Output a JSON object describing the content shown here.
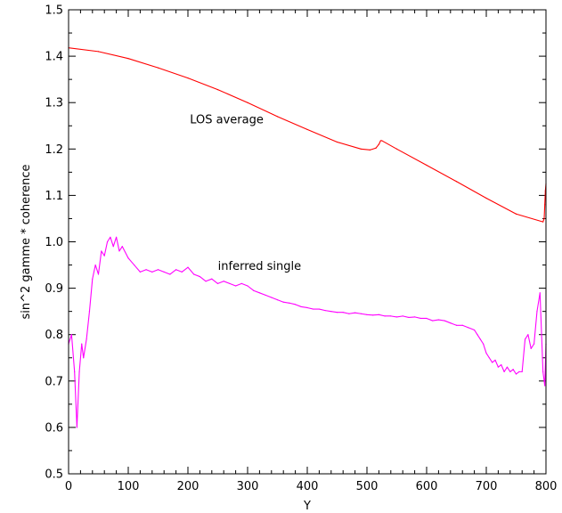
{
  "chart_data": {
    "type": "line",
    "title": "",
    "xlabel": "Y",
    "ylabel": "sin^2 gamme * coherence",
    "xlim": [
      0,
      800
    ],
    "ylim": [
      0.5,
      1.5
    ],
    "x_ticks": [
      0,
      100,
      200,
      300,
      400,
      500,
      600,
      700,
      800
    ],
    "x_tick_labels": [
      "0",
      "100",
      "200",
      "300",
      "400",
      "500",
      "600",
      "700",
      "800"
    ],
    "y_ticks": [
      0.5,
      0.6,
      0.7,
      0.8,
      0.9,
      1.0,
      1.1,
      1.2,
      1.3,
      1.4,
      1.5
    ],
    "y_tick_labels": [
      "0.5",
      "0.6",
      "0.7",
      "0.8",
      "0.9",
      "1.0",
      "1.1",
      "1.2",
      "1.3",
      "1.4",
      "1.5"
    ],
    "grid": false,
    "legend": "none",
    "annotations": [
      {
        "text": "LOS average",
        "x": 265,
        "y": 1.255
      },
      {
        "text": "inferred single",
        "x": 320,
        "y": 0.94
      }
    ],
    "series": [
      {
        "color": "#ff0000",
        "x": [
          0,
          50,
          100,
          150,
          200,
          250,
          300,
          350,
          400,
          450,
          490,
          505,
          515,
          520,
          523,
          525,
          550,
          600,
          650,
          700,
          750,
          795,
          797,
          798,
          799,
          800
        ],
        "y": [
          1.418,
          1.41,
          1.395,
          1.375,
          1.353,
          1.328,
          1.3,
          1.27,
          1.242,
          1.215,
          1.2,
          1.198,
          1.202,
          1.21,
          1.218,
          1.218,
          1.2,
          1.165,
          1.13,
          1.094,
          1.06,
          1.043,
          1.05,
          1.08,
          1.11,
          1.125
        ]
      },
      {
        "color": "#ff00ff",
        "x": [
          0,
          5,
          10,
          14,
          18,
          22,
          25,
          30,
          35,
          40,
          45,
          50,
          55,
          60,
          65,
          70,
          75,
          80,
          85,
          90,
          100,
          110,
          120,
          130,
          140,
          150,
          160,
          170,
          180,
          190,
          200,
          210,
          220,
          230,
          240,
          250,
          260,
          270,
          280,
          290,
          300,
          310,
          320,
          330,
          340,
          350,
          360,
          370,
          380,
          390,
          400,
          410,
          420,
          430,
          440,
          450,
          460,
          470,
          480,
          490,
          500,
          510,
          520,
          530,
          540,
          550,
          560,
          570,
          580,
          590,
          600,
          610,
          620,
          630,
          640,
          650,
          660,
          670,
          680,
          685,
          690,
          695,
          700,
          705,
          710,
          715,
          720,
          725,
          730,
          735,
          740,
          745,
          750,
          755,
          760,
          765,
          770,
          775,
          780,
          785,
          790,
          795,
          798,
          800
        ],
        "y": [
          0.78,
          0.8,
          0.72,
          0.6,
          0.72,
          0.78,
          0.75,
          0.79,
          0.85,
          0.92,
          0.95,
          0.93,
          0.98,
          0.97,
          1.0,
          1.01,
          0.99,
          1.01,
          0.98,
          0.99,
          0.965,
          0.95,
          0.935,
          0.94,
          0.935,
          0.94,
          0.935,
          0.93,
          0.94,
          0.935,
          0.945,
          0.93,
          0.925,
          0.915,
          0.92,
          0.91,
          0.915,
          0.91,
          0.905,
          0.91,
          0.905,
          0.895,
          0.89,
          0.885,
          0.88,
          0.875,
          0.87,
          0.868,
          0.865,
          0.86,
          0.858,
          0.855,
          0.855,
          0.852,
          0.85,
          0.848,
          0.848,
          0.845,
          0.847,
          0.845,
          0.843,
          0.842,
          0.843,
          0.84,
          0.84,
          0.838,
          0.84,
          0.837,
          0.838,
          0.835,
          0.835,
          0.83,
          0.832,
          0.83,
          0.825,
          0.82,
          0.82,
          0.815,
          0.81,
          0.8,
          0.79,
          0.78,
          0.76,
          0.75,
          0.74,
          0.745,
          0.73,
          0.735,
          0.72,
          0.73,
          0.72,
          0.725,
          0.715,
          0.72,
          0.72,
          0.79,
          0.8,
          0.77,
          0.78,
          0.85,
          0.89,
          0.72,
          0.69,
          0.78
        ]
      }
    ]
  }
}
